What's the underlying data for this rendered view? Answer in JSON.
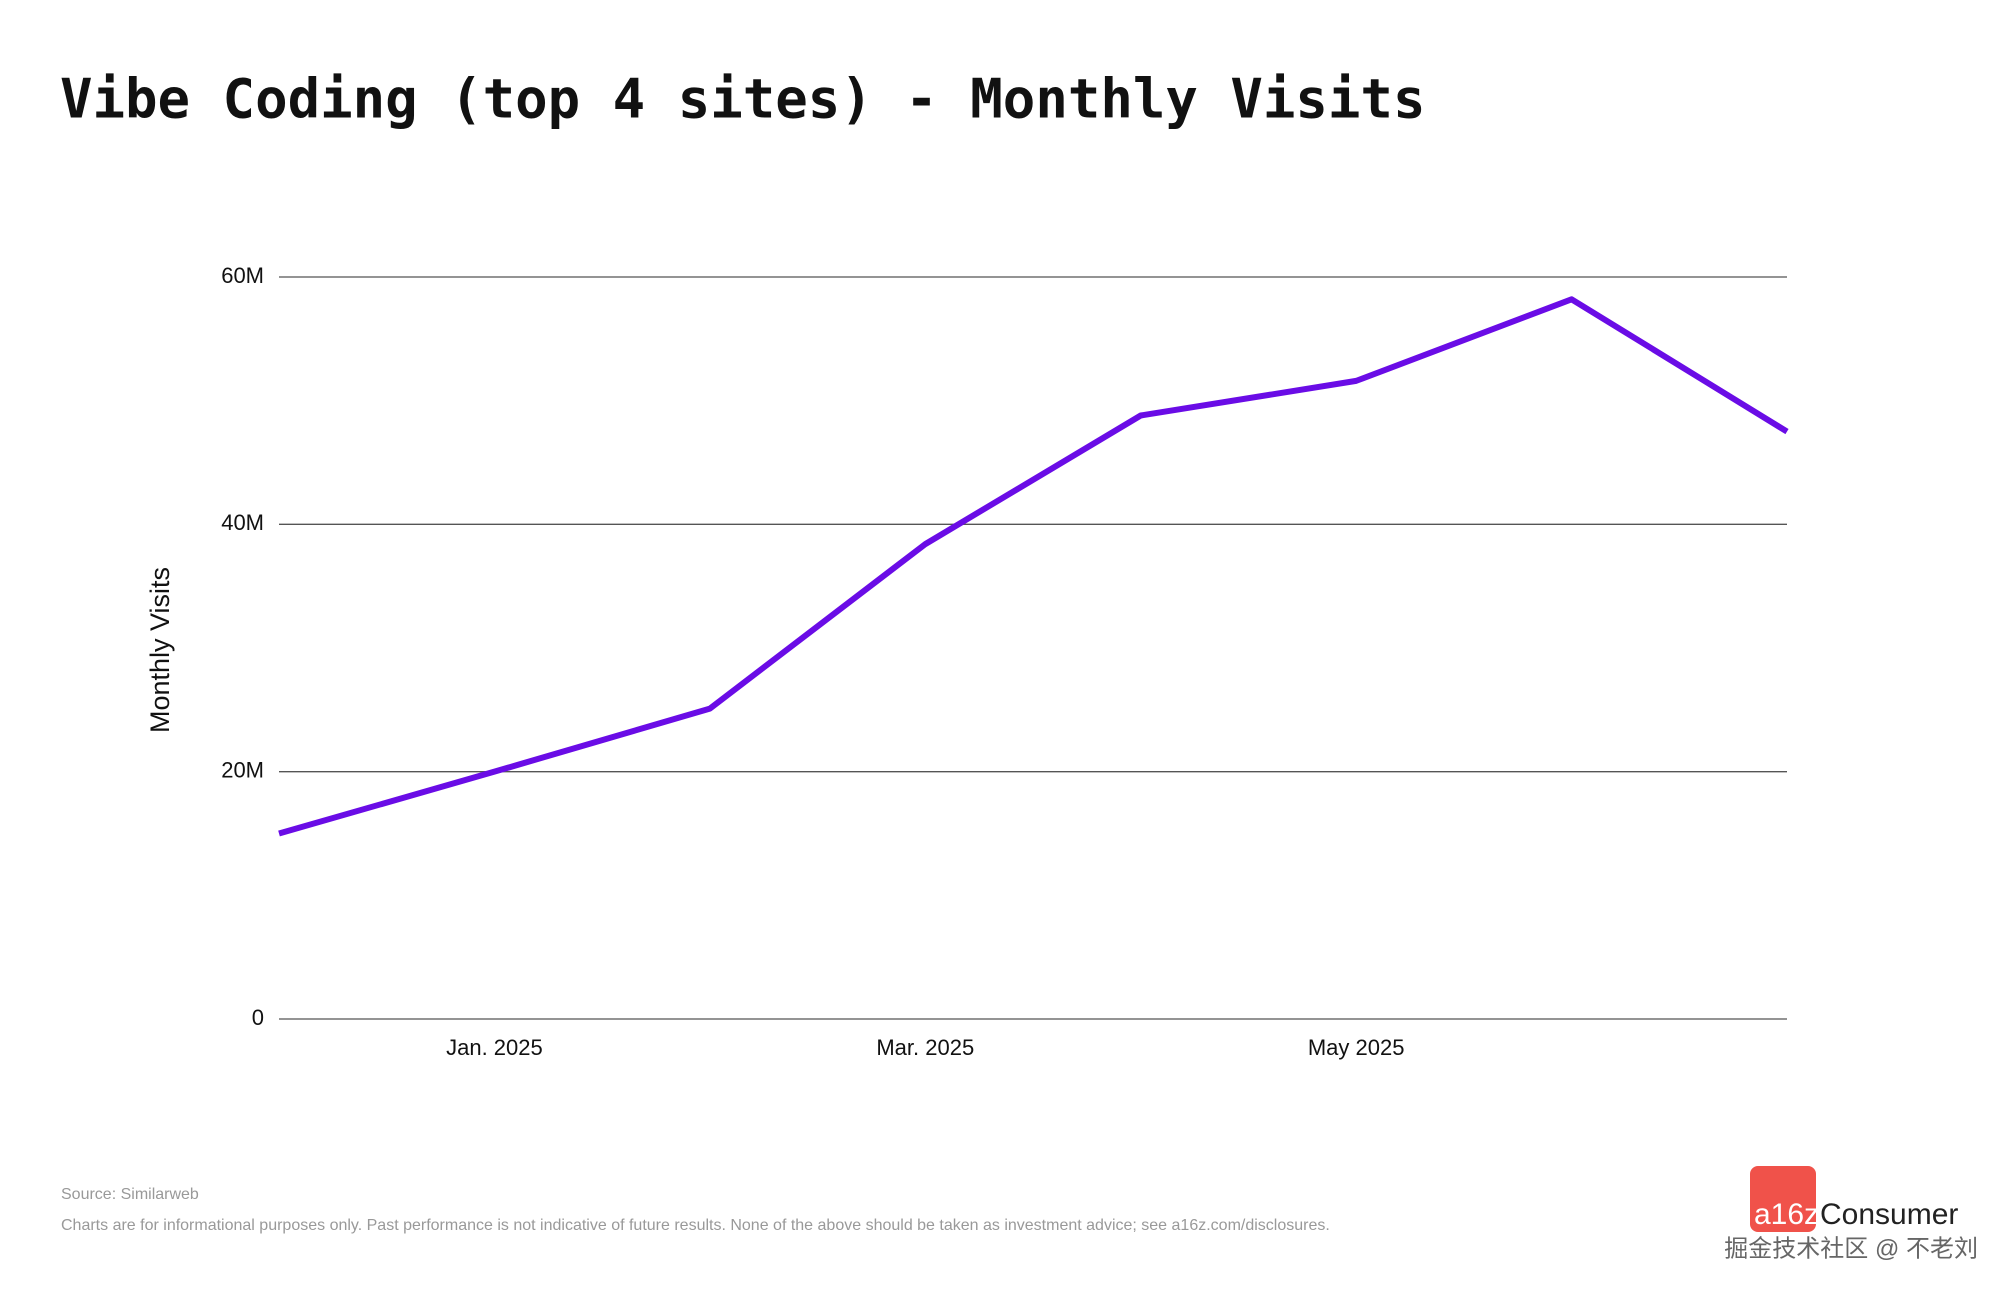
{
  "chart_data": {
    "type": "line",
    "title": "Vibe Coding (top 4 sites) - Monthly Visits",
    "y_label": "Monthly Visits",
    "x": [
      "2024-12",
      "2025-01",
      "2025-02",
      "2025-03",
      "2025-04",
      "2025-05",
      "2025-06",
      "2025-07"
    ],
    "series": [
      {
        "name": "Monthly Visits",
        "color": "#6a0ce6",
        "values": [
          15000000,
          20000000,
          25100000,
          38400000,
          48800000,
          51600000,
          58200000,
          47500000
        ]
      }
    ],
    "xlim": [
      "2024-12",
      "2025-07"
    ],
    "xticks": [
      {
        "value": "2025-01",
        "label": "Jan. 2025"
      },
      {
        "value": "2025-03",
        "label": "Mar. 2025"
      },
      {
        "value": "2025-05",
        "label": "May 2025"
      }
    ],
    "ylim": [
      0,
      60000000
    ],
    "yticks": [
      0,
      {
        "value": 20000000,
        "label": "20M"
      },
      {
        "value": 40000000,
        "label": "40M"
      },
      {
        "value": 60000000,
        "label": "60M"
      }
    ],
    "grid": true
  },
  "footer": {
    "source": "Source: Similarweb",
    "disclaimer": "Charts are for informational purposes only. Past performance is not indicative of future results. None of the above should be taken as investment advice; see a16z.com/disclosures.",
    "logo_mark": "a16z",
    "logo_text": "Consumer",
    "watermark": "掘金技术社区 @ 不老刘"
  }
}
